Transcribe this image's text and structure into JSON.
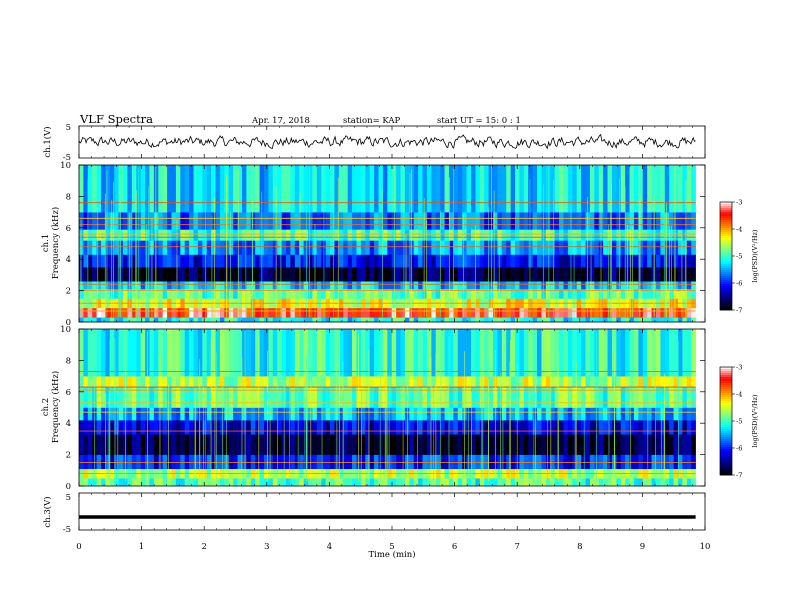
{
  "header": {
    "title": "VLF Spectra",
    "date": "Apr. 17, 2018",
    "station": "station= KAP",
    "start_ut": "start UT =  15: 0  : 1"
  },
  "chart_data": [
    {
      "type": "line",
      "name": "ch.1 waveform",
      "ylabel": "ch.1(V)",
      "ylim": [
        -5,
        5
      ],
      "yticks": [
        "5",
        "-5"
      ],
      "xlim": [
        0,
        9.85
      ],
      "description_values": "noisy signal around 0 V, approx amplitude 1-2 V",
      "stroke": "#000000"
    },
    {
      "type": "heatmap",
      "name": "ch.1 spectrogram",
      "ylabel": "ch.1\nFrequency (kHz)",
      "ylabel_line1": "ch.1",
      "ylabel_line2": "Frequency (kHz)",
      "ylim": [
        0,
        10
      ],
      "yticks": [
        "0",
        "2",
        "4",
        "6",
        "8",
        "10"
      ],
      "xlim": [
        0,
        9.85
      ],
      "colorbar": {
        "label": "log(PSD)(V²/Hz)",
        "range": [
          -7,
          -3
        ],
        "ticks": [
          "-3",
          "-4",
          "-5",
          "-6",
          "-7"
        ]
      },
      "bands": [
        {
          "f0": 0.0,
          "f1": 0.3,
          "level": -5.2
        },
        {
          "f0": 0.3,
          "f1": 0.9,
          "level": -3.4
        },
        {
          "f0": 0.9,
          "f1": 1.5,
          "level": -4.4
        },
        {
          "f0": 1.5,
          "f1": 2.1,
          "level": -4.9
        },
        {
          "f0": 2.1,
          "f1": 2.6,
          "level": -5.4
        },
        {
          "f0": 2.6,
          "f1": 3.5,
          "level": -6.8
        },
        {
          "f0": 3.5,
          "f1": 4.3,
          "level": -6.1
        },
        {
          "f0": 4.3,
          "f1": 5.2,
          "level": -5.6
        },
        {
          "f0": 5.2,
          "f1": 5.9,
          "level": -5.0
        },
        {
          "f0": 5.9,
          "f1": 7.0,
          "level": -5.7
        },
        {
          "f0": 7.0,
          "f1": 10.0,
          "level": -5.3
        }
      ],
      "lines_khz": [
        0.7,
        1.2,
        2.0,
        2.4,
        4.8,
        5.4,
        5.6,
        6.2,
        6.6,
        7.6
      ]
    },
    {
      "type": "heatmap",
      "name": "ch.2 spectrogram",
      "ylabel": "ch.2\nFrequency (kHz)",
      "ylabel_line1": "ch.2",
      "ylabel_line2": "Frequency (kHz)",
      "ylim": [
        0,
        10
      ],
      "yticks": [
        "0",
        "2",
        "4",
        "6",
        "8",
        "10"
      ],
      "xlim": [
        0,
        9.85
      ],
      "colorbar": {
        "label": "log(PSD)(V²/Hz)",
        "range": [
          -7,
          -3
        ],
        "ticks": [
          "-3",
          "-4",
          "-5",
          "-6",
          "-7"
        ]
      },
      "bands": [
        {
          "f0": 0.0,
          "f1": 0.5,
          "level": -5.0
        },
        {
          "f0": 0.5,
          "f1": 1.1,
          "level": -4.6
        },
        {
          "f0": 1.1,
          "f1": 2.0,
          "level": -6.0
        },
        {
          "f0": 2.0,
          "f1": 3.3,
          "level": -6.8
        },
        {
          "f0": 3.3,
          "f1": 4.2,
          "level": -6.2
        },
        {
          "f0": 4.2,
          "f1": 5.0,
          "level": -5.5
        },
        {
          "f0": 5.0,
          "f1": 6.3,
          "level": -4.9
        },
        {
          "f0": 6.3,
          "f1": 7.0,
          "level": -4.6
        },
        {
          "f0": 7.0,
          "f1": 10.0,
          "level": -5.1
        }
      ],
      "lines_khz": [
        0.8,
        1.5,
        3.5,
        4.7,
        5.3,
        6.1,
        6.3,
        7.3
      ]
    },
    {
      "type": "line",
      "name": "ch.3 waveform",
      "ylabel": "ch.3(V)",
      "ylim": [
        -5,
        5
      ],
      "yticks": [
        "5",
        "-5"
      ],
      "xlim": [
        0,
        9.85
      ],
      "y_value": -1.5,
      "stroke": "#000000"
    }
  ],
  "x_axis": {
    "label": "Time (min)",
    "xlim": [
      0,
      10
    ],
    "ticks": [
      "0",
      "1",
      "2",
      "3",
      "4",
      "5",
      "6",
      "7",
      "8",
      "9",
      "10"
    ]
  },
  "colormap": [
    "#000000",
    "#00007f",
    "#0000ff",
    "#007fff",
    "#00ffff",
    "#7fff7f",
    "#ffff00",
    "#ff7f00",
    "#ff0000",
    "#ffffff"
  ]
}
